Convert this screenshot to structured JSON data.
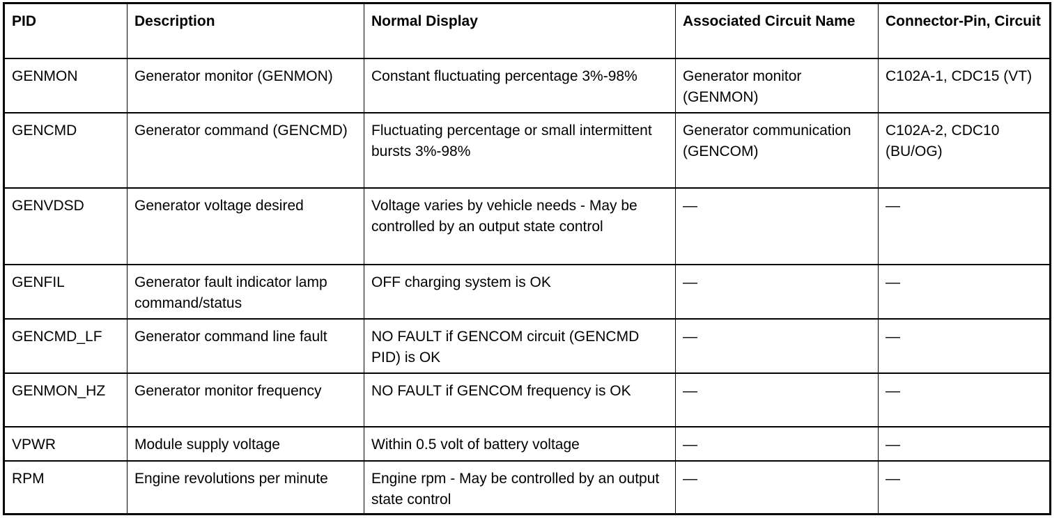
{
  "table": {
    "headers": [
      "PID",
      "Description",
      "Normal Display",
      "Associated Circuit Name",
      "Connector-Pin, Circuit"
    ],
    "rows": [
      [
        "GENMON",
        "Generator monitor (GENMON)",
        "Constant fluctuating percentage 3%-98%",
        "Generator monitor (GENMON)",
        "C102A-1, CDC15 (VT)"
      ],
      [
        "GENCMD",
        "Generator command (GENCMD)",
        "Fluctuating percentage or small intermittent bursts 3%-98%",
        "Generator communication (GENCOM)",
        "C102A-2, CDC10 (BU/OG)"
      ],
      [
        "GENVDSD",
        "Generator voltage desired",
        "Voltage varies by vehicle needs - May be controlled by an output state control",
        "—",
        "—"
      ],
      [
        "GENFIL",
        "Generator fault indicator lamp command/status",
        "OFF charging system is OK",
        "—",
        "—"
      ],
      [
        "GENCMD_LF",
        "Generator command line fault",
        "NO FAULT if GENCOM circuit (GENCMD PID) is OK",
        "—",
        "—"
      ],
      [
        "GENMON_HZ",
        "Generator monitor frequency",
        "NO FAULT if GENCOM frequency is OK",
        "—",
        "—"
      ],
      [
        "VPWR",
        "Module supply voltage",
        "Within 0.5 volt of battery voltage",
        "—",
        "—"
      ],
      [
        "RPM",
        "Engine revolutions per minute",
        "Engine rpm - May be controlled by an output state control",
        "—",
        "—"
      ]
    ]
  }
}
